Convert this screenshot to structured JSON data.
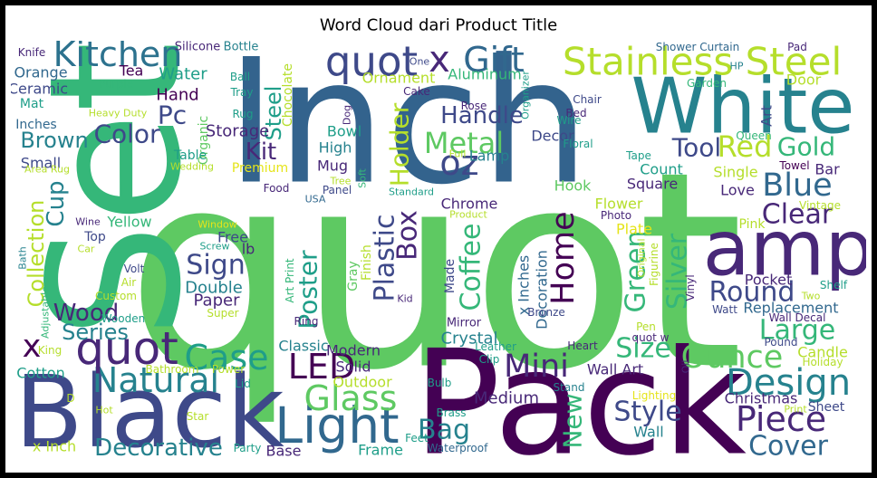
{
  "chart_data": {
    "type": "wordcloud",
    "title": "Word Cloud dari Product Title",
    "words": [
      "quot",
      "Inch",
      "Set",
      "Pack",
      "Black",
      "White",
      "amp",
      "Stainless Steel",
      "Kitchen",
      "quot",
      "x",
      "Gift",
      "Light",
      "Glass",
      "LED",
      "Natural",
      "quot",
      "x",
      "Case",
      "Decorative",
      "Design",
      "Piece",
      "Cover",
      "Ounce",
      "Large",
      "Mini",
      "Bag",
      "Style",
      "Size",
      "Metal",
      "oz",
      "Handle",
      "Holder",
      "Box",
      "Plastic",
      "Coffee",
      "Home",
      "Poster",
      "Round",
      "Clear",
      "Blue",
      "Gold",
      "Red",
      "Tool",
      "Silver",
      "Green",
      "New",
      "Sign",
      "Kit",
      "Color",
      "Brown",
      "Pc",
      "Steel",
      "Wood",
      "Series",
      "Collection",
      "Cup",
      "Small",
      "Inches",
      "Mat",
      "Ceramic",
      "Orange",
      "Knife",
      "Tea",
      "Purple",
      "Water",
      "Hand",
      "Silicone",
      "Bottle",
      "Ball",
      "Tray",
      "Rug",
      "Storage",
      "Organic",
      "Chocolate",
      "Table",
      "Premium",
      "Wedding",
      "Heavy Duty",
      "Yellow",
      "Top",
      "Wine",
      "Car",
      "Free",
      "lb",
      "Window",
      "Screw",
      "Double",
      "Paper",
      "Super",
      "Custom",
      "Air",
      "Volt",
      "Wooden",
      "King",
      "Bath",
      "Adjustable",
      "Cotton",
      "Bathroom",
      "Power",
      "Lid",
      "Hot",
      "D",
      "Star",
      "x Inch",
      "Party",
      "Base",
      "Frame",
      "Feet",
      "Waterproof",
      "Brass",
      "Bulb",
      "Clip",
      "Medium",
      "Stand",
      "Heart",
      "Leather",
      "Crystal",
      "Mirror",
      "Modern",
      "Solid",
      "Outdoor",
      "Classic",
      "Ring",
      "Art Print",
      "Gray",
      "Finish",
      "Kid",
      "Made",
      "x Inches",
      "Decoration",
      "Bronze",
      "Chrome",
      "Product",
      "Standard",
      "Panel",
      "Soft",
      "Tree",
      "Food",
      "USA",
      "Mug",
      "High",
      "Bowl",
      "Dog",
      "Rose",
      "Cake",
      "Aluminum",
      "One",
      "Ornament",
      "Organizer",
      "Chair",
      "Bed",
      "Wire",
      "Decor",
      "Floral",
      "Full",
      "Lamp",
      "Hook",
      "Flower",
      "Photo",
      "Plate",
      "Tape",
      "Count",
      "Square",
      "Love",
      "Single",
      "Queen",
      "Art",
      "Towel",
      "Bar",
      "Vintage",
      "Shower Curtain",
      "Pad",
      "HP",
      "Garden",
      "Door",
      "Pink",
      "Pocket",
      "Two",
      "Shelf",
      "Replacement",
      "Watt",
      "Wall Decal",
      "Pound",
      "Candle",
      "Holiday",
      "Vinyl",
      "Figurine",
      "Original",
      "Pen",
      "quot w",
      "Oil",
      "Wall Art",
      "Wall",
      "Lighting",
      "Christmas",
      "Print",
      "Sheet",
      "Area Rug"
    ]
  }
}
